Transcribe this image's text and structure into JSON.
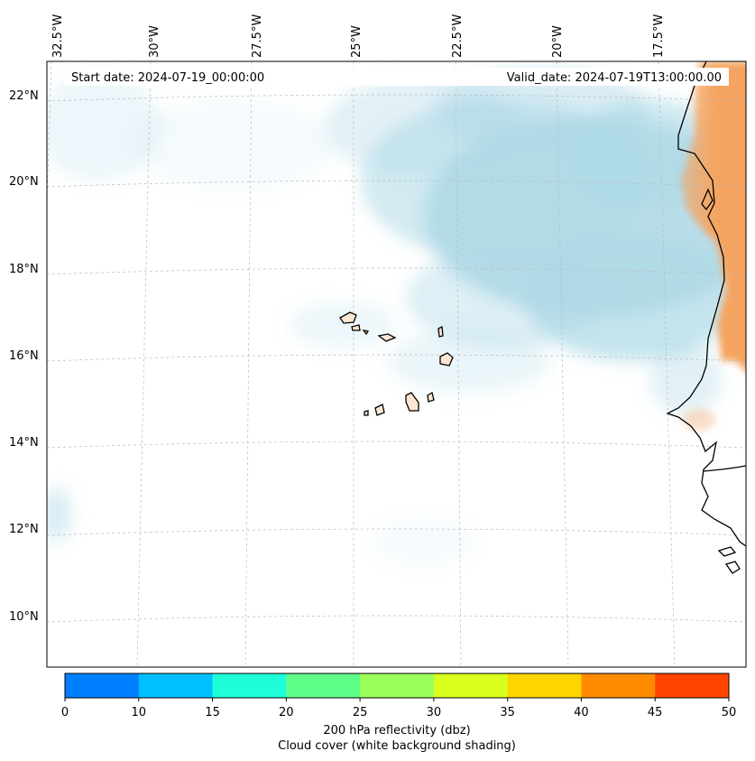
{
  "map": {
    "start_date": "Start date: 2024-07-19_00:00:00",
    "valid_date": "Valid_date: 2024-07-19T13:00:00.00",
    "longitude_labels": [
      "32.5°W",
      "30°W",
      "27.5°W",
      "25°W",
      "22.5°W",
      "20°W",
      "17.5°W"
    ],
    "latitude_labels": [
      "22°N",
      "20°N",
      "18°N",
      "16°N",
      "14°N",
      "12°N",
      "10°N"
    ],
    "cloud_color": "#add8e6",
    "land_reflectivity_color": "#f4a460",
    "coastline_color": "#000000",
    "gridline_color": "#bbbbbb"
  },
  "colorbar": {
    "ticks": [
      "0",
      "10",
      "15",
      "20",
      "25",
      "30",
      "35",
      "40",
      "45",
      "50"
    ],
    "colors": [
      "#007fff",
      "#00bfff",
      "#1effd9",
      "#5fff8a",
      "#9bff5a",
      "#d8ff1e",
      "#ffd500",
      "#ff8c00",
      "#ff4500"
    ],
    "label_line1": "200 hPa reflectivity (dbz)",
    "label_line2": "Cloud cover (white background shading)"
  }
}
